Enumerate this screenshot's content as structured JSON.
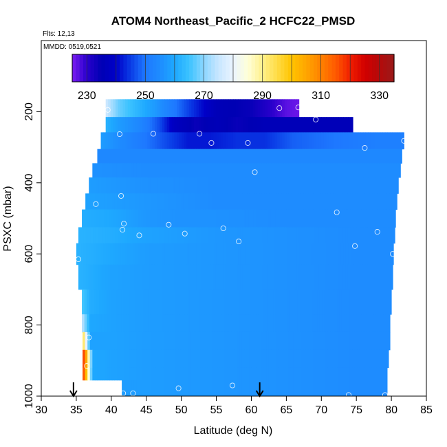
{
  "chart_data": {
    "type": "heatmap",
    "title": "ATOM4 Northeast_Pacific_2 HCFC22_PMSD",
    "flights_label": "Flts: 12,13",
    "date_label": "MMDD: 0519,0521",
    "xlabel": "Latitude (deg N)",
    "ylabel": "PSXC (mbar)",
    "xlim": [
      30,
      85
    ],
    "ylim": [
      1000,
      0
    ],
    "x_ticks": [
      "30",
      "35",
      "40",
      "45",
      "50",
      "55",
      "60",
      "65",
      "70",
      "75",
      "80",
      "85"
    ],
    "y_ticks": [
      "200",
      "400",
      "600",
      "800",
      "1000"
    ],
    "colorbar": {
      "range": [
        225,
        335
      ],
      "tick_values": [
        230,
        250,
        270,
        290,
        310,
        330
      ],
      "tick_labels": [
        "230",
        "250",
        "270",
        "290",
        "310",
        "330"
      ],
      "color_stops": [
        [
          225,
          "#7a1cf0"
        ],
        [
          230,
          "#2a00cc"
        ],
        [
          235,
          "#0000b4"
        ],
        [
          240,
          "#0000c8"
        ],
        [
          245,
          "#0a3ce6"
        ],
        [
          250,
          "#1e78ff"
        ],
        [
          255,
          "#1e8cff"
        ],
        [
          260,
          "#1ea8ff"
        ],
        [
          265,
          "#3cc3ff"
        ],
        [
          270,
          "#8cd6ff"
        ],
        [
          275,
          "#c8e6ff"
        ],
        [
          280,
          "#eaf4ff"
        ],
        [
          285,
          "#ffffd8"
        ],
        [
          290,
          "#fff08c"
        ],
        [
          295,
          "#ffdc46"
        ],
        [
          300,
          "#ffc400"
        ],
        [
          305,
          "#ffa500"
        ],
        [
          310,
          "#ff8200"
        ],
        [
          315,
          "#ff5a00"
        ],
        [
          320,
          "#f01e00"
        ],
        [
          325,
          "#d20000"
        ],
        [
          330,
          "#b40a0a"
        ],
        [
          335,
          "#9a1a1a"
        ]
      ]
    },
    "curtain_rows": [
      {
        "p_top": 165,
        "p_bot": 215,
        "lat_start": 39.2,
        "lat_end": 66.8,
        "values": [
          [
            39.2,
            276
          ],
          [
            41,
            268
          ],
          [
            43,
            264
          ],
          [
            46,
            258
          ],
          [
            50,
            248
          ],
          [
            55,
            236
          ],
          [
            60,
            234
          ],
          [
            63,
            230
          ],
          [
            65,
            227
          ],
          [
            66.8,
            226
          ]
        ]
      },
      {
        "p_top": 215,
        "p_bot": 258,
        "lat_start": 39.2,
        "lat_end": 74.5,
        "values": [
          [
            39.2,
            262
          ],
          [
            41,
            258
          ],
          [
            44,
            254
          ],
          [
            47,
            246
          ],
          [
            49,
            238
          ],
          [
            52,
            234
          ],
          [
            55,
            236
          ],
          [
            58,
            234
          ],
          [
            62,
            236
          ],
          [
            68,
            236
          ],
          [
            74.5,
            236
          ]
        ]
      },
      {
        "p_top": 258,
        "p_bot": 305,
        "lat_start": 38.5,
        "lat_end": 81.8,
        "values": [
          [
            38.5,
            258
          ],
          [
            42,
            254
          ],
          [
            45,
            250
          ],
          [
            48,
            246
          ],
          [
            51,
            242
          ],
          [
            54,
            242
          ],
          [
            58,
            244
          ],
          [
            62,
            244
          ],
          [
            66,
            248
          ],
          [
            72,
            250
          ],
          [
            78,
            252
          ],
          [
            81.8,
            252
          ]
        ]
      },
      {
        "p_top": 305,
        "p_bot": 345,
        "lat_start": 38.0,
        "lat_end": 81.5,
        "values": [
          [
            38.0,
            254
          ],
          [
            45,
            254
          ],
          [
            55,
            254
          ],
          [
            65,
            254
          ],
          [
            75,
            254
          ],
          [
            81.5,
            254
          ]
        ]
      },
      {
        "p_top": 345,
        "p_bot": 385,
        "lat_start": 37.3,
        "lat_end": 81.3,
        "values": [
          [
            37.3,
            256
          ],
          [
            45,
            255
          ],
          [
            55,
            255
          ],
          [
            65,
            255
          ],
          [
            75,
            255
          ],
          [
            81.3,
            255
          ]
        ]
      },
      {
        "p_top": 385,
        "p_bot": 430,
        "lat_start": 36.8,
        "lat_end": 81.0,
        "values": [
          [
            36.8,
            258
          ],
          [
            45,
            256
          ],
          [
            55,
            255
          ],
          [
            65,
            255
          ],
          [
            75,
            255
          ],
          [
            81.0,
            255
          ]
        ]
      },
      {
        "p_top": 430,
        "p_bot": 475,
        "lat_start": 36.3,
        "lat_end": 80.8,
        "values": [
          [
            36.3,
            259
          ],
          [
            45,
            257
          ],
          [
            55,
            255
          ],
          [
            65,
            255
          ],
          [
            75,
            255
          ],
          [
            80.8,
            255
          ]
        ]
      },
      {
        "p_top": 475,
        "p_bot": 525,
        "lat_start": 35.8,
        "lat_end": 80.6,
        "values": [
          [
            35.8,
            261
          ],
          [
            40,
            260
          ],
          [
            45,
            257
          ],
          [
            50,
            256
          ],
          [
            55,
            256
          ],
          [
            65,
            255
          ],
          [
            75,
            255
          ],
          [
            80.6,
            255
          ]
        ]
      },
      {
        "p_top": 525,
        "p_bot": 570,
        "lat_start": 35.3,
        "lat_end": 80.5,
        "values": [
          [
            35.3,
            262
          ],
          [
            40,
            261
          ],
          [
            45,
            259
          ],
          [
            50,
            258
          ],
          [
            55,
            257
          ],
          [
            65,
            256
          ],
          [
            75,
            255
          ],
          [
            80.5,
            255
          ]
        ]
      },
      {
        "p_top": 570,
        "p_bot": 630,
        "lat_start": 35.0,
        "lat_end": 80.3,
        "values": [
          [
            35.0,
            262
          ],
          [
            40,
            260
          ],
          [
            45,
            258
          ],
          [
            55,
            257
          ],
          [
            65,
            256
          ],
          [
            75,
            255
          ],
          [
            80.3,
            255
          ]
        ]
      },
      {
        "p_top": 630,
        "p_bot": 700,
        "lat_start": 35.3,
        "lat_end": 80.2,
        "values": [
          [
            35.3,
            262
          ],
          [
            40,
            259
          ],
          [
            45,
            258
          ],
          [
            55,
            257
          ],
          [
            65,
            256
          ],
          [
            75,
            255
          ],
          [
            80.2,
            255
          ]
        ]
      },
      {
        "p_top": 700,
        "p_bot": 770,
        "lat_start": 35.8,
        "lat_end": 80.0,
        "values": [
          [
            35.8,
            266
          ],
          [
            37,
            261
          ],
          [
            40,
            259
          ],
          [
            45,
            258
          ],
          [
            55,
            257
          ],
          [
            65,
            256
          ],
          [
            75,
            255
          ],
          [
            80.0,
            255
          ]
        ]
      },
      {
        "p_top": 770,
        "p_bot": 820,
        "lat_start": 35.8,
        "lat_end": 79.8,
        "values": [
          [
            35.8,
            275
          ],
          [
            37,
            260
          ],
          [
            40,
            259
          ],
          [
            45,
            258
          ],
          [
            55,
            257
          ],
          [
            65,
            256
          ],
          [
            75,
            255
          ],
          [
            79.8,
            255
          ]
        ]
      },
      {
        "p_top": 820,
        "p_bot": 870,
        "lat_start": 35.9,
        "lat_end": 79.8,
        "values": [
          [
            35.9,
            298
          ],
          [
            37,
            259
          ],
          [
            40,
            259
          ],
          [
            45,
            258
          ],
          [
            55,
            257
          ],
          [
            65,
            256
          ],
          [
            75,
            255
          ],
          [
            79.8,
            255
          ]
        ]
      },
      {
        "p_top": 870,
        "p_bot": 920,
        "lat_start": 35.9,
        "lat_end": 79.6,
        "values": [
          [
            35.9,
            322
          ],
          [
            36.5,
            302
          ],
          [
            37.3,
            260
          ],
          [
            40,
            259
          ],
          [
            45,
            258
          ],
          [
            55,
            257
          ],
          [
            65,
            256
          ],
          [
            75,
            255
          ],
          [
            79.6,
            255
          ]
        ]
      },
      {
        "p_top": 920,
        "p_bot": 955,
        "lat_start": 35.9,
        "lat_end": 79.4,
        "values": [
          [
            35.9,
            322
          ],
          [
            36.5,
            298
          ],
          [
            37.3,
            260
          ],
          [
            40,
            259
          ],
          [
            45,
            258
          ],
          [
            55,
            257
          ],
          [
            65,
            256
          ],
          [
            75,
            255
          ],
          [
            79.4,
            255
          ]
        ]
      },
      {
        "p_top": 955,
        "p_bot": 1000,
        "lat_start": 41.5,
        "lat_end": 79.4,
        "values": [
          [
            41.5,
            258
          ],
          [
            45,
            258
          ],
          [
            55,
            257
          ],
          [
            65,
            256
          ],
          [
            75,
            255
          ],
          [
            79.4,
            255
          ]
        ]
      }
    ],
    "sample_points": [
      [
        39.5,
        195
      ],
      [
        64.0,
        190
      ],
      [
        66.7,
        188
      ],
      [
        69.2,
        222
      ],
      [
        41.2,
        263
      ],
      [
        46.0,
        262
      ],
      [
        52.6,
        262
      ],
      [
        54.3,
        288
      ],
      [
        59.5,
        288
      ],
      [
        76.2,
        302
      ],
      [
        81.8,
        282
      ],
      [
        60.5,
        370
      ],
      [
        41.4,
        437
      ],
      [
        37.8,
        460
      ],
      [
        72.2,
        483
      ],
      [
        41.8,
        515
      ],
      [
        48.2,
        518
      ],
      [
        41.6,
        532
      ],
      [
        56.0,
        528
      ],
      [
        44.0,
        548
      ],
      [
        50.5,
        543
      ],
      [
        58.2,
        565
      ],
      [
        78.0,
        538
      ],
      [
        74.8,
        578
      ],
      [
        35.3,
        615
      ],
      [
        80.2,
        600
      ],
      [
        36.8,
        835
      ],
      [
        36.5,
        915
      ],
      [
        41.7,
        992
      ],
      [
        43.1,
        992
      ],
      [
        49.6,
        978
      ],
      [
        57.3,
        970
      ],
      [
        73.9,
        997
      ],
      [
        79.1,
        997
      ]
    ],
    "flight_markers_lat": [
      34.6,
      61.2
    ]
  }
}
